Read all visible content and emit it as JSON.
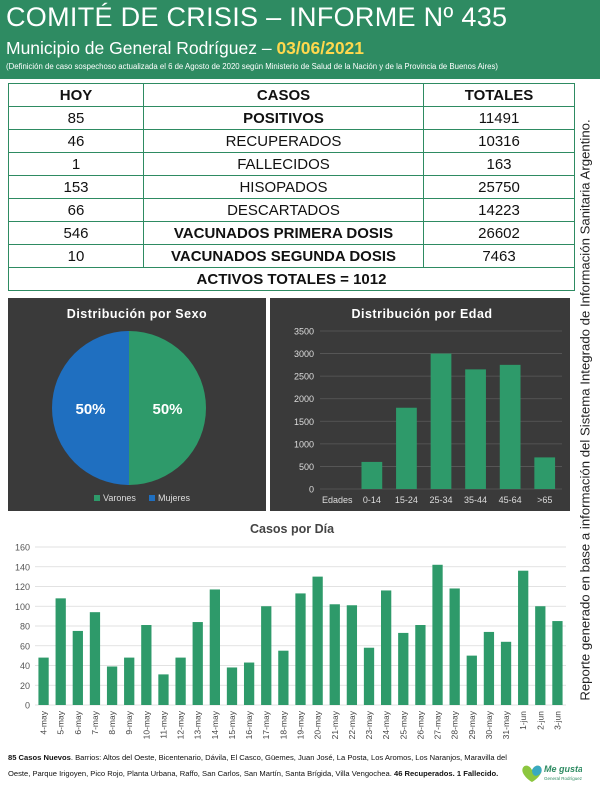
{
  "header": {
    "title": "COMITÉ DE CRISIS – INFORME Nº 435",
    "subtitle_prefix": "Municipio de General Rodríguez – ",
    "date": "03/06/2021",
    "note": "(Definición de caso sospechoso actualizada el 6 de Agosto de 2020 según Ministerio de Salud de la Nación y de la Provincia de Buenos Aires)"
  },
  "table": {
    "headers": [
      "HOY",
      "CASOS",
      "TOTALES"
    ],
    "rows": [
      {
        "hoy": "85",
        "label": "POSITIVOS",
        "total": "11491"
      },
      {
        "hoy": "46",
        "label": "RECUPERADOS",
        "total": "10316"
      },
      {
        "hoy": "1",
        "label": "FALLECIDOS",
        "total": "163"
      },
      {
        "hoy": "153",
        "label": "HISOPADOS",
        "total": "25750"
      },
      {
        "hoy": "66",
        "label": "DESCARTADOS",
        "total": "14223"
      },
      {
        "hoy": "546",
        "label": "VACUNADOS PRIMERA DOSIS",
        "total": "26602"
      },
      {
        "hoy": "10",
        "label": "VACUNADOS SEGUNDA DOSIS",
        "total": "7463"
      }
    ],
    "footer": "ACTIVOS TOTALES = 1012"
  },
  "sidebar_text": "Reporte generado en base a información del Sistema Integrado de Información Sanitaria Argentino.",
  "colors": {
    "green": "#2e9a6a",
    "blue": "#1f6fc0",
    "panel": "#3a3a3a",
    "header": "#2e8b62"
  },
  "chart_data": [
    {
      "type": "pie",
      "title": "Distribución por Sexo",
      "categories": [
        "Varones",
        "Mujeres"
      ],
      "values": [
        50,
        50
      ],
      "value_labels": [
        "50%",
        "50%"
      ],
      "legend": "bottom"
    },
    {
      "type": "bar",
      "title": "Distribución por Edad",
      "categories": [
        "Edades",
        "0-14",
        "15-24",
        "25-34",
        "35-44",
        "45-64",
        ">65"
      ],
      "values": [
        0,
        600,
        1800,
        3000,
        2650,
        2750,
        700
      ],
      "ylim": [
        0,
        3500
      ],
      "yticks": [
        0,
        500,
        1000,
        1500,
        2000,
        2500,
        3000,
        3500
      ],
      "grid": true
    },
    {
      "type": "bar",
      "title": "Casos por Día",
      "categories": [
        "4-may",
        "5-may",
        "6-may",
        "7-may",
        "8-may",
        "9-may",
        "10-may",
        "11-may",
        "12-may",
        "13-may",
        "14-may",
        "15-may",
        "16-may",
        "17-may",
        "18-may",
        "19-may",
        "20-may",
        "21-may",
        "22-may",
        "23-may",
        "24-may",
        "25-may",
        "26-may",
        "27-may",
        "28-may",
        "29-may",
        "30-may",
        "31-may",
        "1-jun",
        "2-jun",
        "3-jun"
      ],
      "values": [
        48,
        108,
        75,
        94,
        39,
        48,
        81,
        31,
        48,
        84,
        117,
        38,
        43,
        100,
        55,
        113,
        130,
        102,
        101,
        58,
        116,
        73,
        81,
        142,
        118,
        50,
        74,
        64,
        136,
        100,
        85
      ],
      "ylim": [
        0,
        160
      ],
      "yticks": [
        0,
        20,
        40,
        60,
        80,
        100,
        120,
        140,
        160
      ],
      "grid": true
    }
  ],
  "footnote": {
    "lead": "85 Casos Nuevos",
    "body": ". Barrios: Altos del Oeste, Bicentenario, Dávila, El Casco, Güemes, Juan José, La Posta, Los Aromos, Los Naranjos, Maravilla del Oeste, Parque Irigoyen, Pico Rojo, Planta Urbana, Raffo, San Carlos, San Martín, Santa Brígida, Villa Vengochea. ",
    "tail": "46 Recuperados. 1 Fallecido."
  },
  "logo": {
    "text": "Me gusta",
    "subtext": "General Rodríguez"
  }
}
